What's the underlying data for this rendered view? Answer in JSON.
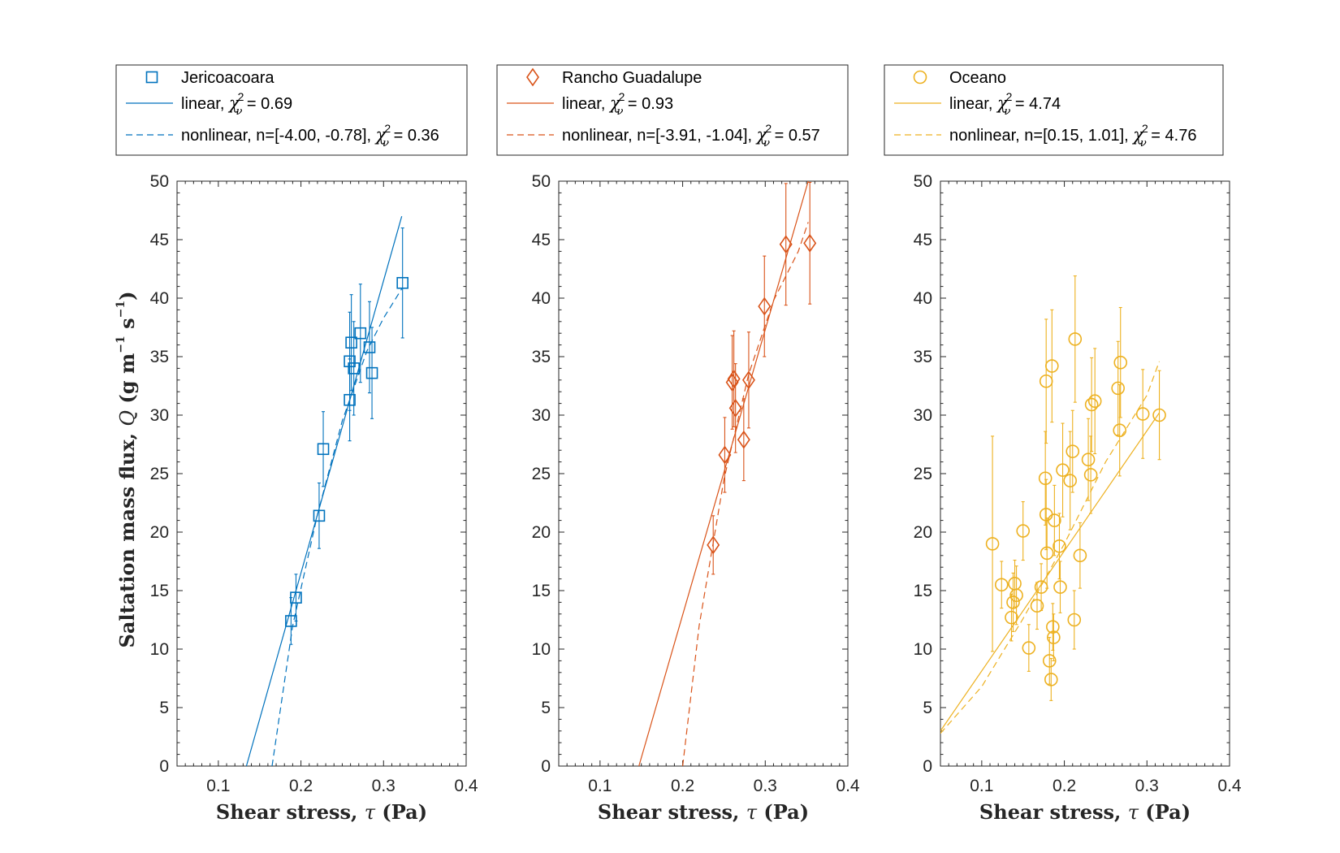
{
  "colors": {
    "blue": "#0072BD",
    "orange": "#D95319",
    "yellow": "#EDB120",
    "axis": "#262626"
  },
  "chart_data": [
    {
      "type": "scatter",
      "marker": "square",
      "color": "#0072BD",
      "legend": {
        "marker_label": "Jericoacoara",
        "linear_prefix": "linear, ",
        "linear_chi": "0.69",
        "nonlinear_prefix": "nonlinear, n=[-4.00, -0.78], ",
        "nonlinear_chi": "0.36"
      },
      "xlim": [
        0.05,
        0.4
      ],
      "ylim": [
        0,
        50
      ],
      "xticks": [
        "0.1",
        "0.2",
        "0.3",
        "0.4"
      ],
      "yticks": [
        "0",
        "5",
        "10",
        "15",
        "20",
        "25",
        "30",
        "35",
        "40",
        "45",
        "50"
      ],
      "xlabel": "Shear stress, ",
      "xlabel_symbol": "τ",
      "xlabel_unit": " (Pa)",
      "ylabel_prefix": "Saltation mass flux, ",
      "ylabel_symbol": "Q",
      "ylabel_unit": " (g m",
      "points": [
        {
          "x": 0.188,
          "y": 12.4,
          "err": 2.0
        },
        {
          "x": 0.194,
          "y": 14.4,
          "err": 2.0
        },
        {
          "x": 0.222,
          "y": 21.4,
          "err": 2.8
        },
        {
          "x": 0.227,
          "y": 27.1,
          "err": 3.2
        },
        {
          "x": 0.259,
          "y": 31.3,
          "err": 3.5
        },
        {
          "x": 0.259,
          "y": 34.6,
          "err": 4.2
        },
        {
          "x": 0.261,
          "y": 36.2,
          "err": 4.1
        },
        {
          "x": 0.264,
          "y": 34.0,
          "err": 4.0
        },
        {
          "x": 0.272,
          "y": 37.0,
          "err": 4.2
        },
        {
          "x": 0.283,
          "y": 35.8,
          "err": 3.9
        },
        {
          "x": 0.286,
          "y": 33.6,
          "err": 3.9
        },
        {
          "x": 0.323,
          "y": 41.3,
          "err": 4.7
        }
      ],
      "linear_fit": [
        [
          0.134,
          0
        ],
        [
          0.322,
          47.0
        ]
      ],
      "nonlinear_fit": [
        [
          0.165,
          0
        ],
        [
          0.19,
          12.0
        ],
        [
          0.22,
          21.5
        ],
        [
          0.25,
          29.5
        ],
        [
          0.28,
          35.5
        ],
        [
          0.3,
          38.3
        ],
        [
          0.322,
          40.8
        ]
      ]
    },
    {
      "type": "scatter",
      "marker": "diamond",
      "color": "#D95319",
      "legend": {
        "marker_label": "Rancho Guadalupe",
        "linear_prefix": "linear, ",
        "linear_chi": "0.93",
        "nonlinear_prefix": "nonlinear, n=[-3.91, -1.04], ",
        "nonlinear_chi": "0.57"
      },
      "xlim": [
        0.05,
        0.4
      ],
      "ylim": [
        0,
        50
      ],
      "xticks": [
        "0.1",
        "0.2",
        "0.3",
        "0.4"
      ],
      "yticks": [
        "0",
        "5",
        "10",
        "15",
        "20",
        "25",
        "30",
        "35",
        "40",
        "45",
        "50"
      ],
      "xlabel": "Shear stress, ",
      "xlabel_symbol": "τ",
      "xlabel_unit": " (Pa)",
      "points": [
        {
          "x": 0.237,
          "y": 18.9,
          "err": 2.5
        },
        {
          "x": 0.251,
          "y": 26.6,
          "err": 3.2
        },
        {
          "x": 0.26,
          "y": 32.8,
          "err": 4.0
        },
        {
          "x": 0.262,
          "y": 33.1,
          "err": 4.1
        },
        {
          "x": 0.264,
          "y": 30.6,
          "err": 3.8
        },
        {
          "x": 0.274,
          "y": 27.9,
          "err": 3.5
        },
        {
          "x": 0.28,
          "y": 33.0,
          "err": 4.1
        },
        {
          "x": 0.299,
          "y": 39.3,
          "err": 4.3
        },
        {
          "x": 0.325,
          "y": 44.6,
          "err": 5.2
        },
        {
          "x": 0.354,
          "y": 44.7,
          "err": 5.2
        }
      ],
      "linear_fit": [
        [
          0.147,
          0
        ],
        [
          0.352,
          50.0
        ]
      ],
      "nonlinear_fit": [
        [
          0.2,
          0
        ],
        [
          0.22,
          12.0
        ],
        [
          0.25,
          24.5
        ],
        [
          0.28,
          33.5
        ],
        [
          0.31,
          39.8
        ],
        [
          0.34,
          44.0
        ],
        [
          0.352,
          46.5
        ]
      ]
    },
    {
      "type": "scatter",
      "marker": "circle",
      "color": "#EDB120",
      "legend": {
        "marker_label": "Oceano",
        "linear_prefix": "linear, ",
        "linear_chi": "4.74",
        "nonlinear_prefix": "nonlinear, n=[0.15, 1.01], ",
        "nonlinear_chi": "4.76"
      },
      "xlim": [
        0.05,
        0.4
      ],
      "ylim": [
        0,
        50
      ],
      "xticks": [
        "0.1",
        "0.2",
        "0.3",
        "0.4"
      ],
      "yticks": [
        "0",
        "5",
        "10",
        "15",
        "20",
        "25",
        "30",
        "35",
        "40",
        "45",
        "50"
      ],
      "xlabel": "Shear stress, ",
      "xlabel_symbol": "τ",
      "xlabel_unit": " (Pa)",
      "points": [
        {
          "x": 0.113,
          "y": 19.0,
          "err": 9.2
        },
        {
          "x": 0.124,
          "y": 15.5,
          "err": 2.0
        },
        {
          "x": 0.136,
          "y": 12.7,
          "err": 2.0
        },
        {
          "x": 0.138,
          "y": 14.0,
          "err": 2.5
        },
        {
          "x": 0.14,
          "y": 15.6,
          "err": 2.0
        },
        {
          "x": 0.142,
          "y": 14.6,
          "err": 2.5
        },
        {
          "x": 0.15,
          "y": 20.1,
          "err": 2.5
        },
        {
          "x": 0.157,
          "y": 10.1,
          "err": 2.0
        },
        {
          "x": 0.167,
          "y": 13.7,
          "err": 2.0
        },
        {
          "x": 0.172,
          "y": 15.3,
          "err": 2.0
        },
        {
          "x": 0.177,
          "y": 24.6,
          "err": 4.0
        },
        {
          "x": 0.178,
          "y": 21.5,
          "err": 3.0
        },
        {
          "x": 0.178,
          "y": 32.9,
          "err": 5.3
        },
        {
          "x": 0.179,
          "y": 18.2,
          "err": 3.0
        },
        {
          "x": 0.182,
          "y": 9.0,
          "err": 2.0
        },
        {
          "x": 0.184,
          "y": 7.4,
          "err": 1.8
        },
        {
          "x": 0.185,
          "y": 34.2,
          "err": 4.8
        },
        {
          "x": 0.186,
          "y": 11.9,
          "err": 2.0
        },
        {
          "x": 0.187,
          "y": 11.0,
          "err": 2.0
        },
        {
          "x": 0.188,
          "y": 21.0,
          "err": 3.0
        },
        {
          "x": 0.194,
          "y": 18.8,
          "err": 2.8
        },
        {
          "x": 0.195,
          "y": 15.3,
          "err": 2.2
        },
        {
          "x": 0.198,
          "y": 25.3,
          "err": 4.0
        },
        {
          "x": 0.207,
          "y": 24.4,
          "err": 4.2
        },
        {
          "x": 0.21,
          "y": 26.9,
          "err": 3.5
        },
        {
          "x": 0.212,
          "y": 12.5,
          "err": 2.5
        },
        {
          "x": 0.213,
          "y": 36.5,
          "err": 5.4
        },
        {
          "x": 0.219,
          "y": 18.0,
          "err": 2.8
        },
        {
          "x": 0.229,
          "y": 26.2,
          "err": 3.5
        },
        {
          "x": 0.232,
          "y": 24.9,
          "err": 3.3
        },
        {
          "x": 0.233,
          "y": 30.9,
          "err": 4.0
        },
        {
          "x": 0.237,
          "y": 31.2,
          "err": 4.5
        },
        {
          "x": 0.265,
          "y": 32.3,
          "err": 4.0
        },
        {
          "x": 0.267,
          "y": 28.7,
          "err": 3.9
        },
        {
          "x": 0.268,
          "y": 34.5,
          "err": 4.7
        },
        {
          "x": 0.295,
          "y": 30.1,
          "err": 3.8
        },
        {
          "x": 0.315,
          "y": 30.0,
          "err": 3.8
        }
      ],
      "linear_fit": [
        [
          0.05,
          3.0
        ],
        [
          0.315,
          30.2
        ]
      ],
      "nonlinear_fit": [
        [
          0.05,
          2.8
        ],
        [
          0.1,
          6.8
        ],
        [
          0.15,
          12.6
        ],
        [
          0.2,
          19.0
        ],
        [
          0.25,
          26.0
        ],
        [
          0.3,
          31.7
        ],
        [
          0.315,
          34.6
        ]
      ]
    }
  ]
}
